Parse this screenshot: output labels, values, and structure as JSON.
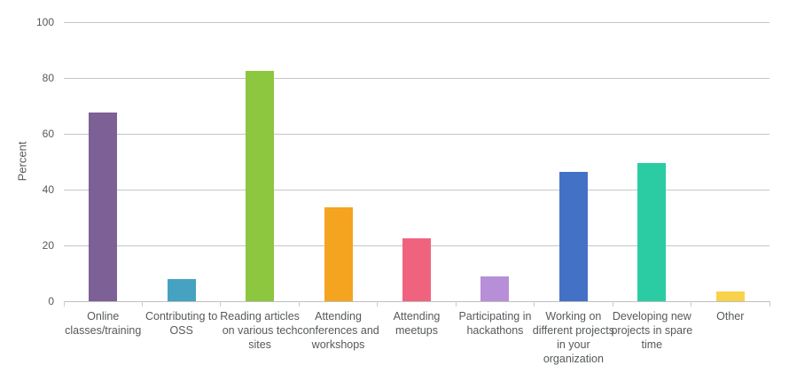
{
  "chart": {
    "y_axis_title": "Percent"
  },
  "chart_data": {
    "type": "bar",
    "title": "",
    "xlabel": "",
    "ylabel": "Percent",
    "ylim": [
      0,
      100
    ],
    "yticks": [
      0,
      20,
      40,
      60,
      80,
      100
    ],
    "grid": true,
    "legend": false,
    "categories": [
      "Online classes/training",
      "Contributing to OSS",
      "Reading articles on various tech sites",
      "Attending conferences and workshops",
      "Attending meetups",
      "Participating in hackathons",
      "Working on different projects in your organization",
      "Developing new projects in spare time",
      "Other"
    ],
    "values": [
      67.5,
      8,
      82.5,
      33.5,
      22.5,
      9,
      46.5,
      49.5,
      3.5
    ],
    "colors": [
      "#7C6096",
      "#45A3C1",
      "#8DC63F",
      "#F4A41F",
      "#F0637E",
      "#B68FD8",
      "#4371C6",
      "#2BCCA3",
      "#F9D24B"
    ],
    "grid_color": "#c6c6c6",
    "text_color": "#55595c"
  }
}
